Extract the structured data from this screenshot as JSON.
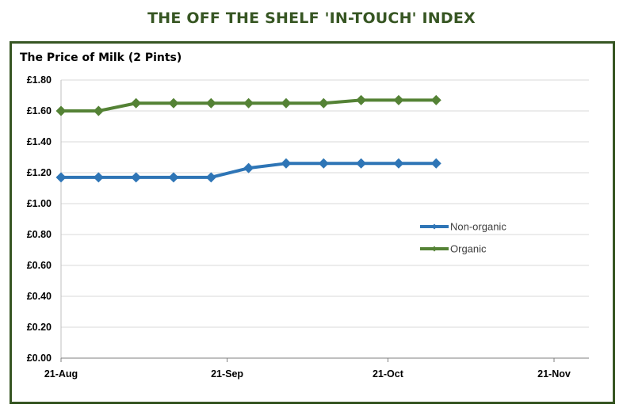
{
  "page_title": "THE OFF THE SHELF 'IN-TOUCH' INDEX",
  "colors": {
    "frame": "#375623",
    "non_organic": "#2E75B6",
    "organic": "#548235",
    "grid": "#D9D9D9"
  },
  "chart_data": {
    "type": "line",
    "title": "The Price of Milk (2 Pints)",
    "xlabel": "",
    "ylabel": "",
    "x_ticks": [
      "21-Aug",
      "21-Sep",
      "21-Oct",
      "21-Nov"
    ],
    "x_tick_dates": [
      "2021-08-21",
      "2021-09-21",
      "2021-10-21",
      "2021-11-21"
    ],
    "x": [
      "2021-08-21",
      "2021-08-28",
      "2021-09-04",
      "2021-09-11",
      "2021-09-18",
      "2021-09-25",
      "2021-10-02",
      "2021-10-09",
      "2021-10-16",
      "2021-10-23",
      "2021-10-30"
    ],
    "y_ticks": [
      "£0.00",
      "£0.20",
      "£0.40",
      "£0.60",
      "£0.80",
      "£1.00",
      "£1.20",
      "£1.40",
      "£1.60",
      "£1.80"
    ],
    "ylim": [
      0,
      1.8
    ],
    "grid": true,
    "legend_position": "right",
    "series": [
      {
        "name": "Non-organic",
        "color": "#2E75B6",
        "values": [
          1.17,
          1.17,
          1.17,
          1.17,
          1.17,
          1.23,
          1.26,
          1.26,
          1.26,
          1.26,
          1.26
        ]
      },
      {
        "name": "Organic",
        "color": "#548235",
        "values": [
          1.6,
          1.6,
          1.65,
          1.65,
          1.65,
          1.65,
          1.65,
          1.65,
          1.67,
          1.67,
          1.67
        ]
      }
    ]
  }
}
